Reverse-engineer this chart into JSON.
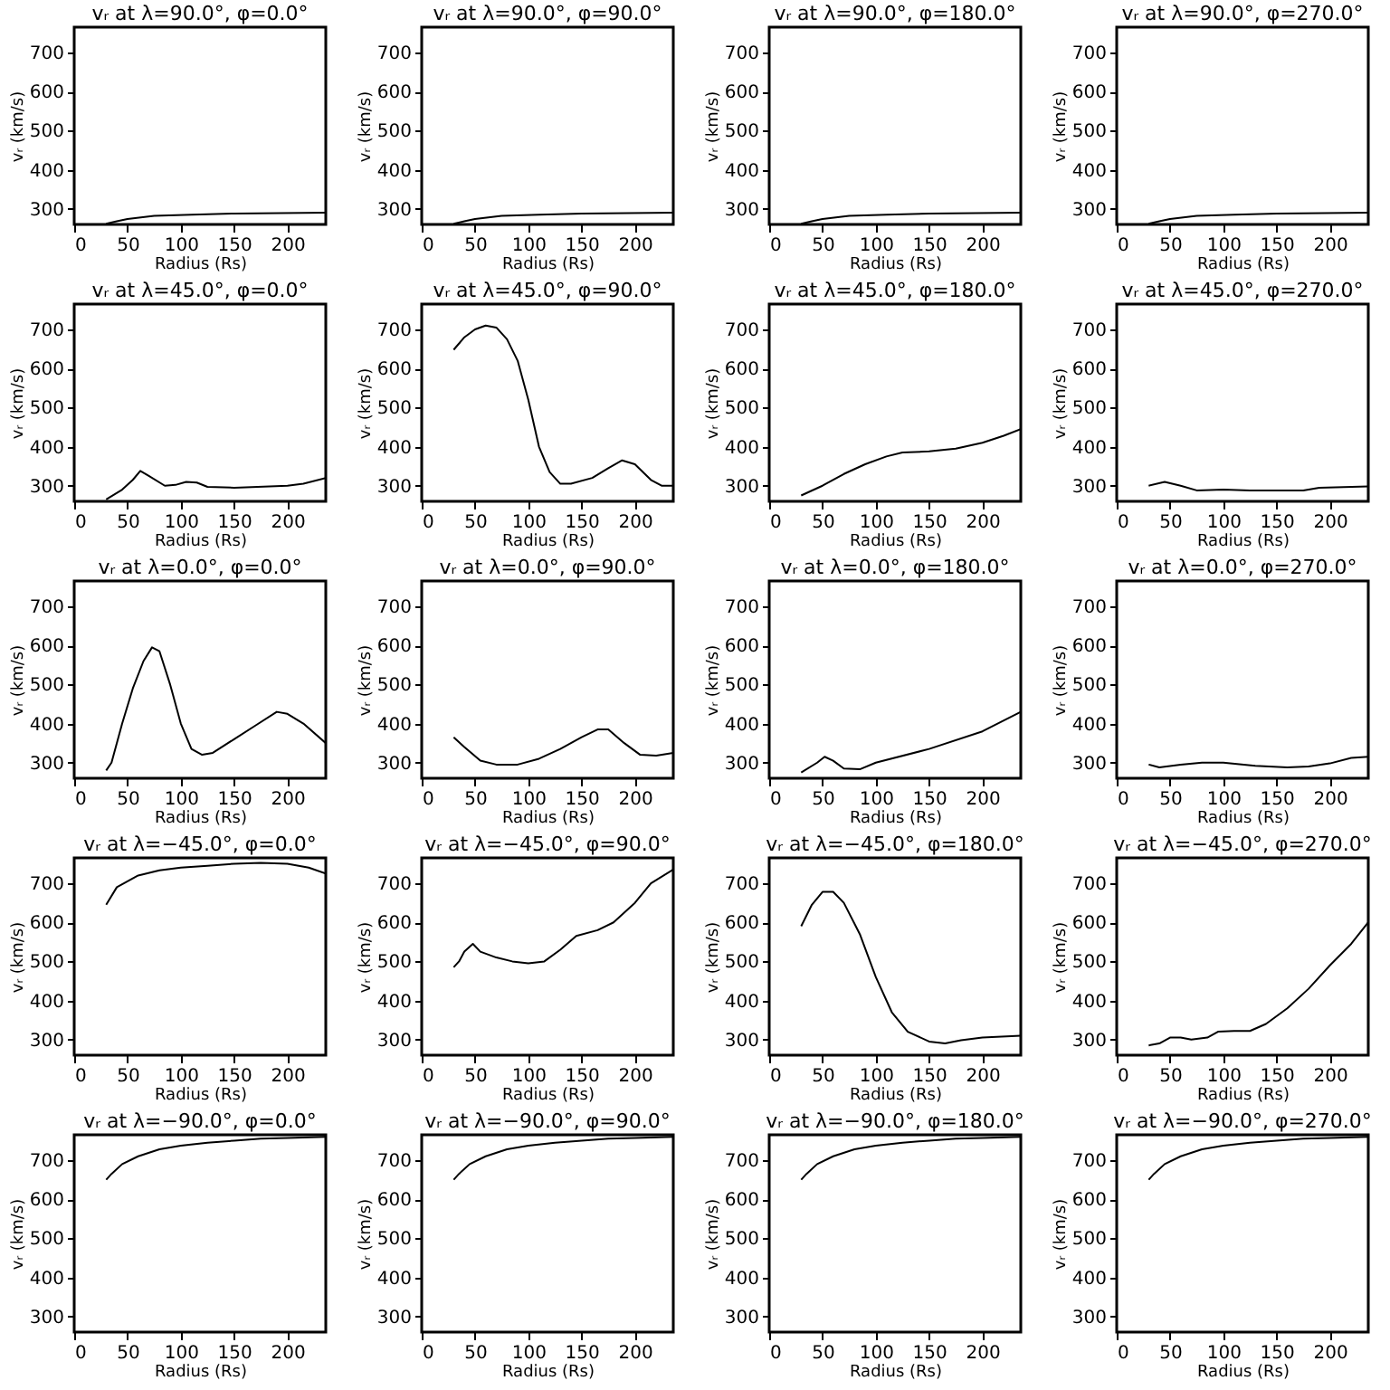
{
  "chart_data": [
    {
      "type": "line",
      "title": "vᵣ at λ=90.0°, φ=0.0°",
      "xlabel": "Radius (Rs)",
      "ylabel": "vᵣ (km/s)",
      "color": "#000000",
      "xlim": [
        0,
        236
      ],
      "ylim": [
        260,
        765
      ],
      "xticks": [
        0,
        50,
        100,
        150,
        200
      ],
      "yticks": [
        300,
        400,
        500,
        600,
        700
      ],
      "x": [
        30,
        40,
        50,
        75,
        110,
        150,
        236
      ],
      "values": [
        262,
        268,
        274,
        282,
        285,
        288,
        290
      ]
    },
    {
      "type": "line",
      "title": "vᵣ at λ=90.0°, φ=90.0°",
      "xlabel": "Radius (Rs)",
      "ylabel": "vᵣ (km/s)",
      "color": "#000000",
      "xlim": [
        0,
        236
      ],
      "ylim": [
        260,
        765
      ],
      "xticks": [
        0,
        50,
        100,
        150,
        200
      ],
      "yticks": [
        300,
        400,
        500,
        600,
        700
      ],
      "x": [
        30,
        40,
        50,
        75,
        110,
        150,
        236
      ],
      "values": [
        262,
        268,
        274,
        282,
        285,
        288,
        290
      ]
    },
    {
      "type": "line",
      "title": "vᵣ at λ=90.0°, φ=180.0°",
      "xlabel": "Radius (Rs)",
      "ylabel": "vᵣ (km/s)",
      "color": "#000000",
      "xlim": [
        0,
        236
      ],
      "ylim": [
        260,
        765
      ],
      "xticks": [
        0,
        50,
        100,
        150,
        200
      ],
      "yticks": [
        300,
        400,
        500,
        600,
        700
      ],
      "x": [
        30,
        40,
        50,
        75,
        110,
        150,
        236
      ],
      "values": [
        262,
        268,
        274,
        282,
        285,
        288,
        290
      ]
    },
    {
      "type": "line",
      "title": "vᵣ at λ=90.0°, φ=270.0°",
      "xlabel": "Radius (Rs)",
      "ylabel": "vᵣ (km/s)",
      "color": "#000000",
      "xlim": [
        0,
        236
      ],
      "ylim": [
        260,
        765
      ],
      "xticks": [
        0,
        50,
        100,
        150,
        200
      ],
      "yticks": [
        300,
        400,
        500,
        600,
        700
      ],
      "x": [
        30,
        40,
        50,
        75,
        110,
        150,
        236
      ],
      "values": [
        262,
        268,
        274,
        282,
        285,
        288,
        290
      ]
    },
    {
      "type": "line",
      "title": "vᵣ at λ=45.0°, φ=0.0°",
      "xlabel": "Radius (Rs)",
      "ylabel": "vᵣ (km/s)",
      "color": "#000000",
      "xlim": [
        0,
        236
      ],
      "ylim": [
        260,
        765
      ],
      "xticks": [
        0,
        50,
        100,
        150,
        200
      ],
      "yticks": [
        300,
        400,
        500,
        600,
        700
      ],
      "x": [
        30,
        45,
        55,
        62,
        70,
        85,
        95,
        105,
        115,
        125,
        150,
        200,
        215,
        236
      ],
      "values": [
        265,
        290,
        315,
        338,
        325,
        300,
        302,
        310,
        308,
        297,
        295,
        300,
        305,
        320
      ]
    },
    {
      "type": "line",
      "title": "vᵣ at λ=45.0°, φ=90.0°",
      "xlabel": "Radius (Rs)",
      "ylabel": "vᵣ (km/s)",
      "color": "#000000",
      "xlim": [
        0,
        236
      ],
      "ylim": [
        260,
        765
      ],
      "xticks": [
        0,
        50,
        100,
        150,
        200
      ],
      "yticks": [
        300,
        400,
        500,
        600,
        700
      ],
      "x": [
        30,
        40,
        50,
        60,
        70,
        80,
        90,
        100,
        110,
        120,
        130,
        140,
        160,
        175,
        188,
        200,
        215,
        225,
        236
      ],
      "values": [
        648,
        680,
        700,
        710,
        705,
        675,
        620,
        520,
        400,
        335,
        305,
        305,
        320,
        345,
        365,
        355,
        315,
        300,
        300
      ]
    },
    {
      "type": "line",
      "title": "vᵣ at λ=45.0°, φ=180.0°",
      "xlabel": "Radius (Rs)",
      "ylabel": "vᵣ (km/s)",
      "color": "#000000",
      "xlim": [
        0,
        236
      ],
      "ylim": [
        260,
        765
      ],
      "xticks": [
        0,
        50,
        100,
        150,
        200
      ],
      "yticks": [
        300,
        400,
        500,
        600,
        700
      ],
      "x": [
        30,
        50,
        70,
        90,
        110,
        125,
        150,
        175,
        200,
        220,
        236
      ],
      "values": [
        275,
        300,
        330,
        355,
        375,
        385,
        388,
        395,
        410,
        428,
        445
      ]
    },
    {
      "type": "line",
      "title": "vᵣ at λ=45.0°, φ=270.0°",
      "xlabel": "Radius (Rs)",
      "ylabel": "vᵣ (km/s)",
      "color": "#000000",
      "xlim": [
        0,
        236
      ],
      "ylim": [
        260,
        765
      ],
      "xticks": [
        0,
        50,
        100,
        150,
        200
      ],
      "yticks": [
        300,
        400,
        500,
        600,
        700
      ],
      "x": [
        30,
        45,
        60,
        75,
        100,
        125,
        175,
        190,
        236
      ],
      "values": [
        300,
        310,
        300,
        288,
        290,
        288,
        288,
        295,
        298
      ]
    },
    {
      "type": "line",
      "title": "vᵣ at λ=0.0°, φ=0.0°",
      "xlabel": "Radius (Rs)",
      "ylabel": "vᵣ (km/s)",
      "color": "#000000",
      "xlim": [
        0,
        236
      ],
      "ylim": [
        260,
        765
      ],
      "xticks": [
        0,
        50,
        100,
        150,
        200
      ],
      "yticks": [
        300,
        400,
        500,
        600,
        700
      ],
      "x": [
        30,
        35,
        45,
        55,
        65,
        73,
        80,
        90,
        100,
        110,
        120,
        130,
        150,
        170,
        190,
        200,
        215,
        236
      ],
      "values": [
        280,
        300,
        400,
        490,
        560,
        595,
        585,
        500,
        400,
        335,
        320,
        325,
        360,
        395,
        430,
        425,
        400,
        350
      ]
    },
    {
      "type": "line",
      "title": "vᵣ at λ=0.0°, φ=90.0°",
      "xlabel": "Radius (Rs)",
      "ylabel": "vᵣ (km/s)",
      "color": "#000000",
      "xlim": [
        0,
        236
      ],
      "ylim": [
        260,
        765
      ],
      "xticks": [
        0,
        50,
        100,
        150,
        200
      ],
      "yticks": [
        300,
        400,
        500,
        600,
        700
      ],
      "x": [
        30,
        40,
        55,
        70,
        90,
        110,
        130,
        150,
        165,
        175,
        190,
        205,
        220,
        236
      ],
      "values": [
        365,
        340,
        305,
        295,
        295,
        310,
        335,
        365,
        385,
        385,
        350,
        320,
        318,
        325
      ]
    },
    {
      "type": "line",
      "title": "vᵣ at λ=0.0°, φ=180.0°",
      "xlabel": "Radius (Rs)",
      "ylabel": "vᵣ (km/s)",
      "color": "#000000",
      "xlim": [
        0,
        236
      ],
      "ylim": [
        260,
        765
      ],
      "xticks": [
        0,
        50,
        100,
        150,
        200
      ],
      "yticks": [
        300,
        400,
        500,
        600,
        700
      ],
      "x": [
        30,
        45,
        52,
        60,
        70,
        85,
        100,
        150,
        200,
        236
      ],
      "values": [
        275,
        300,
        315,
        305,
        285,
        283,
        300,
        335,
        380,
        430
      ]
    },
    {
      "type": "line",
      "title": "vᵣ at λ=0.0°, φ=270.0°",
      "xlabel": "Radius (Rs)",
      "ylabel": "vᵣ (km/s)",
      "color": "#000000",
      "xlim": [
        0,
        236
      ],
      "ylim": [
        260,
        765
      ],
      "xticks": [
        0,
        50,
        100,
        150,
        200
      ],
      "yticks": [
        300,
        400,
        500,
        600,
        700
      ],
      "x": [
        30,
        40,
        60,
        80,
        100,
        130,
        160,
        180,
        200,
        220,
        236
      ],
      "values": [
        295,
        288,
        295,
        300,
        300,
        292,
        288,
        290,
        298,
        312,
        315
      ]
    },
    {
      "type": "line",
      "title": "vᵣ at λ=−45.0°, φ=0.0°",
      "xlabel": "Radius (Rs)",
      "ylabel": "vᵣ (km/s)",
      "color": "#000000",
      "xlim": [
        0,
        236
      ],
      "ylim": [
        260,
        765
      ],
      "xticks": [
        0,
        50,
        100,
        150,
        200
      ],
      "yticks": [
        300,
        400,
        500,
        600,
        700
      ],
      "x": [
        30,
        40,
        60,
        80,
        100,
        125,
        150,
        175,
        200,
        220,
        236
      ],
      "values": [
        645,
        690,
        720,
        733,
        740,
        745,
        750,
        752,
        750,
        740,
        725
      ]
    },
    {
      "type": "line",
      "title": "vᵣ at λ=−45.0°, φ=90.0°",
      "xlabel": "Radius (Rs)",
      "ylabel": "vᵣ (km/s)",
      "color": "#000000",
      "xlim": [
        0,
        236
      ],
      "ylim": [
        260,
        765
      ],
      "xticks": [
        0,
        50,
        100,
        150,
        200
      ],
      "yticks": [
        300,
        400,
        500,
        600,
        700
      ],
      "x": [
        30,
        35,
        40,
        48,
        55,
        70,
        85,
        100,
        115,
        130,
        145,
        165,
        180,
        200,
        215,
        236
      ],
      "values": [
        485,
        500,
        525,
        545,
        525,
        510,
        500,
        495,
        500,
        530,
        565,
        580,
        600,
        650,
        700,
        735
      ]
    },
    {
      "type": "line",
      "title": "vᵣ at λ=−45.0°, φ=180.0°",
      "xlabel": "Radius (Rs)",
      "ylabel": "vᵣ (km/s)",
      "color": "#000000",
      "xlim": [
        0,
        236
      ],
      "ylim": [
        260,
        765
      ],
      "xticks": [
        0,
        50,
        100,
        150,
        200
      ],
      "yticks": [
        300,
        400,
        500,
        600,
        700
      ],
      "x": [
        30,
        40,
        50,
        60,
        70,
        85,
        100,
        115,
        130,
        150,
        165,
        180,
        200,
        236
      ],
      "values": [
        590,
        645,
        678,
        678,
        650,
        570,
        460,
        370,
        320,
        295,
        290,
        298,
        305,
        310
      ]
    },
    {
      "type": "line",
      "title": "vᵣ at λ=−45.0°, φ=270.0°",
      "xlabel": "Radius (Rs)",
      "ylabel": "vᵣ (km/s)",
      "color": "#000000",
      "xlim": [
        0,
        236
      ],
      "ylim": [
        260,
        765
      ],
      "xticks": [
        0,
        50,
        100,
        150,
        200
      ],
      "yticks": [
        300,
        400,
        500,
        600,
        700
      ],
      "x": [
        30,
        40,
        50,
        60,
        70,
        85,
        95,
        110,
        125,
        140,
        160,
        180,
        200,
        220,
        236
      ],
      "values": [
        285,
        290,
        305,
        305,
        300,
        305,
        320,
        322,
        322,
        340,
        380,
        430,
        490,
        545,
        600
      ]
    },
    {
      "type": "line",
      "title": "vᵣ at λ=−90.0°, φ=0.0°",
      "xlabel": "Radius (Rs)",
      "ylabel": "vᵣ (km/s)",
      "color": "#000000",
      "xlim": [
        0,
        236
      ],
      "ylim": [
        260,
        765
      ],
      "xticks": [
        0,
        50,
        100,
        150,
        200
      ],
      "yticks": [
        300,
        400,
        500,
        600,
        700
      ],
      "x": [
        30,
        35,
        45,
        60,
        80,
        100,
        125,
        150,
        175,
        200,
        236
      ],
      "values": [
        650,
        665,
        690,
        710,
        728,
        737,
        745,
        750,
        755,
        757,
        760
      ]
    },
    {
      "type": "line",
      "title": "vᵣ at λ=−90.0°, φ=90.0°",
      "xlabel": "Radius (Rs)",
      "ylabel": "vᵣ (km/s)",
      "color": "#000000",
      "xlim": [
        0,
        236
      ],
      "ylim": [
        260,
        765
      ],
      "xticks": [
        0,
        50,
        100,
        150,
        200
      ],
      "yticks": [
        300,
        400,
        500,
        600,
        700
      ],
      "x": [
        30,
        35,
        45,
        60,
        80,
        100,
        125,
        150,
        175,
        200,
        236
      ],
      "values": [
        650,
        665,
        690,
        710,
        728,
        737,
        745,
        750,
        755,
        757,
        760
      ]
    },
    {
      "type": "line",
      "title": "vᵣ at λ=−90.0°, φ=180.0°",
      "xlabel": "Radius (Rs)",
      "ylabel": "vᵣ (km/s)",
      "color": "#000000",
      "xlim": [
        0,
        236
      ],
      "ylim": [
        260,
        765
      ],
      "xticks": [
        0,
        50,
        100,
        150,
        200
      ],
      "yticks": [
        300,
        400,
        500,
        600,
        700
      ],
      "x": [
        30,
        35,
        45,
        60,
        80,
        100,
        125,
        150,
        175,
        200,
        236
      ],
      "values": [
        650,
        665,
        690,
        710,
        728,
        737,
        745,
        750,
        755,
        757,
        760
      ]
    },
    {
      "type": "line",
      "title": "vᵣ at λ=−90.0°, φ=270.0°",
      "xlabel": "Radius (Rs)",
      "ylabel": "vᵣ (km/s)",
      "color": "#000000",
      "xlim": [
        0,
        236
      ],
      "ylim": [
        260,
        765
      ],
      "xticks": [
        0,
        50,
        100,
        150,
        200
      ],
      "yticks": [
        300,
        400,
        500,
        600,
        700
      ],
      "x": [
        30,
        35,
        45,
        60,
        80,
        100,
        125,
        150,
        175,
        200,
        236
      ],
      "values": [
        650,
        665,
        690,
        710,
        728,
        737,
        745,
        750,
        755,
        757,
        760
      ]
    }
  ]
}
